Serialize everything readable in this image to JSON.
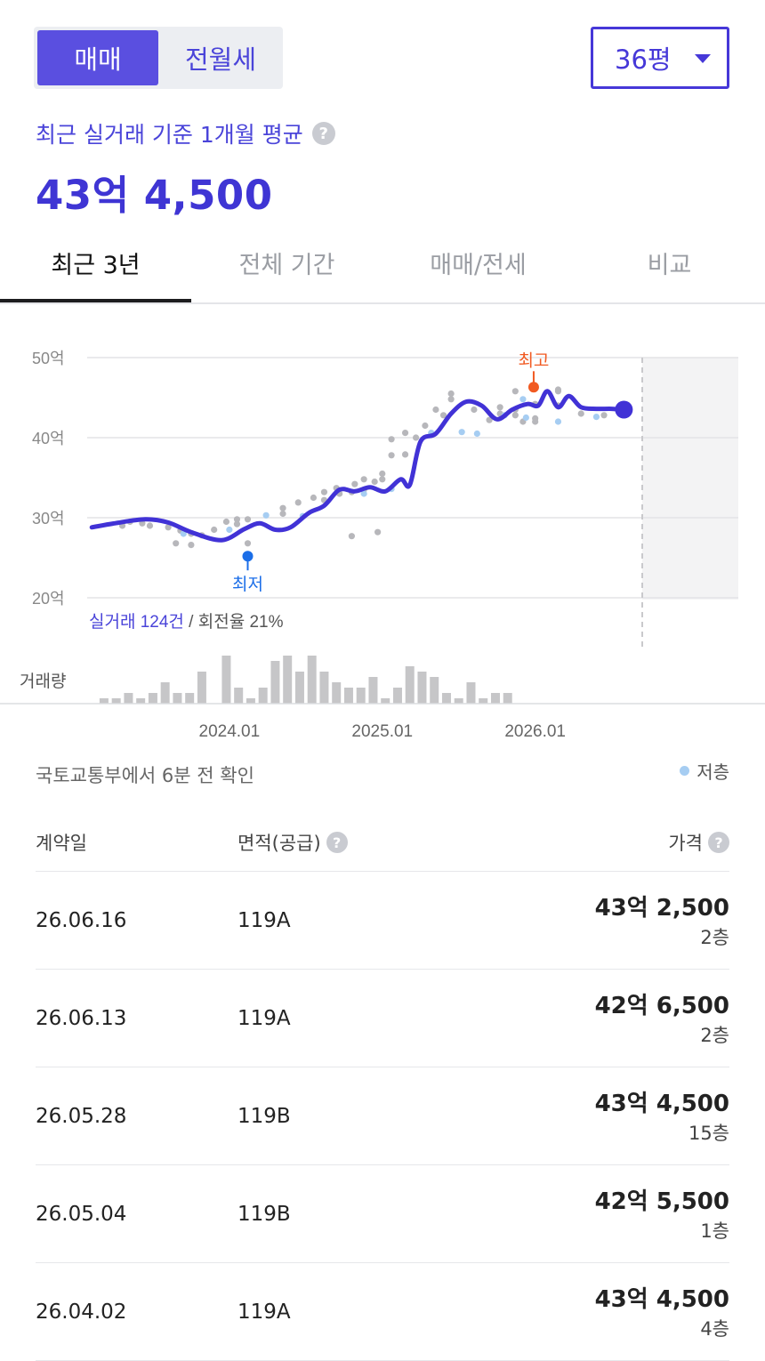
{
  "deal_toggle": {
    "options": [
      "매매",
      "전월세"
    ],
    "selected": "매매"
  },
  "area_select": {
    "value": "36평"
  },
  "summary": {
    "label": "최근 실거래 기준 1개월 평균",
    "help": "?",
    "price": "43억 4,500"
  },
  "tabs": [
    "최근 3년",
    "전체 기간",
    "매매/전세",
    "비교"
  ],
  "chart": {
    "annotation_high": "최고",
    "annotation_low": "최저",
    "stats_count": "실거래 124건",
    "stats_sep": " / ",
    "stats_turnover": "회전율 21%",
    "volume_label": "거래량",
    "colors": {
      "line": "#4132d6",
      "high": "#f15a22",
      "low": "#1b6ee8",
      "low_floor_dot": "#a6cdf2",
      "dot": "#b7b7bb",
      "bar": "#c6c6c8"
    }
  },
  "chart_data": {
    "type": "line",
    "ylabel": "",
    "yticks": [
      "20억",
      "30억",
      "40억",
      "50억"
    ],
    "ylim": [
      20,
      50
    ],
    "xticks": [
      "2024.01",
      "2025.01",
      "2026.01"
    ],
    "xlim": [
      2023.07,
      2026.7
    ],
    "series": [
      {
        "x": [
          2023.1,
          2023.25,
          2023.45,
          2023.6,
          2023.75,
          2023.95,
          2024.1,
          2024.2,
          2024.3,
          2024.4,
          2024.52,
          2024.62,
          2024.72,
          2024.82,
          2024.92,
          2025.02,
          2025.12,
          2025.18,
          2025.25,
          2025.35,
          2025.45,
          2025.55,
          2025.65,
          2025.75,
          2025.85,
          2025.95,
          2026.02,
          2026.08,
          2026.15,
          2026.22,
          2026.3,
          2026.4,
          2026.5,
          2026.58
        ],
        "values": [
          28.8,
          29.3,
          29.8,
          29.4,
          28.2,
          27.2,
          28.6,
          29.3,
          28.5,
          28.8,
          30.6,
          31.5,
          33.5,
          33.3,
          33.8,
          33.3,
          34.8,
          34.1,
          39.5,
          40.5,
          43.0,
          44.5,
          44.0,
          42.3,
          43.5,
          44.2,
          44.0,
          45.8,
          43.8,
          45.2,
          43.8,
          43.6,
          43.6,
          43.5
        ]
      }
    ],
    "scatter_all": [
      {
        "x": 2023.3,
        "y": 29.0
      },
      {
        "x": 2023.35,
        "y": 29.5
      },
      {
        "x": 2023.43,
        "y": 29.3
      },
      {
        "x": 2023.48,
        "y": 29.0
      },
      {
        "x": 2023.6,
        "y": 28.8
      },
      {
        "x": 2023.68,
        "y": 28.4
      },
      {
        "x": 2023.65,
        "y": 26.8
      },
      {
        "x": 2023.75,
        "y": 28.0
      },
      {
        "x": 2023.75,
        "y": 26.6
      },
      {
        "x": 2023.82,
        "y": 27.8
      },
      {
        "x": 2023.9,
        "y": 28.5
      },
      {
        "x": 2023.98,
        "y": 29.5
      },
      {
        "x": 2024.05,
        "y": 29.8
      },
      {
        "x": 2024.05,
        "y": 29.2
      },
      {
        "x": 2024.12,
        "y": 29.8
      },
      {
        "x": 2024.12,
        "y": 26.8
      },
      {
        "x": 2024.35,
        "y": 31.2
      },
      {
        "x": 2024.35,
        "y": 30.5
      },
      {
        "x": 2024.45,
        "y": 31.9
      },
      {
        "x": 2024.55,
        "y": 32.5
      },
      {
        "x": 2024.62,
        "y": 32.2
      },
      {
        "x": 2024.62,
        "y": 33.2
      },
      {
        "x": 2024.7,
        "y": 33.7
      },
      {
        "x": 2024.72,
        "y": 33.0
      },
      {
        "x": 2024.8,
        "y": 33.2
      },
      {
        "x": 2024.82,
        "y": 34.2
      },
      {
        "x": 2024.8,
        "y": 27.7
      },
      {
        "x": 2024.88,
        "y": 34.8
      },
      {
        "x": 2024.88,
        "y": 33.5
      },
      {
        "x": 2024.95,
        "y": 34.5
      },
      {
        "x": 2024.97,
        "y": 28.2
      },
      {
        "x": 2025.0,
        "y": 34.8
      },
      {
        "x": 2025.0,
        "y": 35.5
      },
      {
        "x": 2025.06,
        "y": 39.8
      },
      {
        "x": 2025.06,
        "y": 37.8
      },
      {
        "x": 2025.15,
        "y": 37.9
      },
      {
        "x": 2025.15,
        "y": 40.6
      },
      {
        "x": 2025.22,
        "y": 40.0
      },
      {
        "x": 2025.28,
        "y": 41.5
      },
      {
        "x": 2025.35,
        "y": 43.5
      },
      {
        "x": 2025.4,
        "y": 42.8
      },
      {
        "x": 2025.45,
        "y": 45.5
      },
      {
        "x": 2025.45,
        "y": 44.8
      },
      {
        "x": 2025.6,
        "y": 43.5
      },
      {
        "x": 2025.7,
        "y": 42.2
      },
      {
        "x": 2025.77,
        "y": 43.0
      },
      {
        "x": 2025.77,
        "y": 43.8
      },
      {
        "x": 2025.87,
        "y": 42.8
      },
      {
        "x": 2025.87,
        "y": 43.5
      },
      {
        "x": 2025.87,
        "y": 45.8
      },
      {
        "x": 2025.92,
        "y": 42.0
      },
      {
        "x": 2026.0,
        "y": 44.2
      },
      {
        "x": 2026.0,
        "y": 42.4
      },
      {
        "x": 2026.0,
        "y": 42.0
      },
      {
        "x": 2026.15,
        "y": 46.0
      },
      {
        "x": 2026.15,
        "y": 45.8
      },
      {
        "x": 2026.15,
        "y": 44.0
      },
      {
        "x": 2026.3,
        "y": 43.0
      },
      {
        "x": 2026.45,
        "y": 42.8
      }
    ],
    "scatter_low_floor": [
      {
        "x": 2023.7,
        "y": 28.0
      },
      {
        "x": 2024.0,
        "y": 28.5
      },
      {
        "x": 2024.24,
        "y": 30.3
      },
      {
        "x": 2024.48,
        "y": 30.2
      },
      {
        "x": 2024.88,
        "y": 33.0
      },
      {
        "x": 2025.06,
        "y": 33.6
      },
      {
        "x": 2025.32,
        "y": 40.6
      },
      {
        "x": 2025.52,
        "y": 40.7
      },
      {
        "x": 2025.62,
        "y": 40.5
      },
      {
        "x": 2025.8,
        "y": 42.8
      },
      {
        "x": 2025.92,
        "y": 44.8
      },
      {
        "x": 2025.94,
        "y": 42.5
      },
      {
        "x": 2026.15,
        "y": 42.0
      },
      {
        "x": 2026.4,
        "y": 42.6
      }
    ],
    "high": {
      "x": 2025.99,
      "y": 46.3
    },
    "low": {
      "x": 2024.12,
      "y": 25.2
    },
    "current": {
      "x": 2026.58,
      "y": 43.5
    },
    "volume": [
      {
        "x": 2023.18,
        "v": 1
      },
      {
        "x": 2023.26,
        "v": 1
      },
      {
        "x": 2023.34,
        "v": 2
      },
      {
        "x": 2023.42,
        "v": 1
      },
      {
        "x": 2023.5,
        "v": 2
      },
      {
        "x": 2023.58,
        "v": 4
      },
      {
        "x": 2023.66,
        "v": 2
      },
      {
        "x": 2023.74,
        "v": 2
      },
      {
        "x": 2023.82,
        "v": 6
      },
      {
        "x": 2023.98,
        "v": 9
      },
      {
        "x": 2024.06,
        "v": 3
      },
      {
        "x": 2024.14,
        "v": 1
      },
      {
        "x": 2024.22,
        "v": 3
      },
      {
        "x": 2024.3,
        "v": 8
      },
      {
        "x": 2024.38,
        "v": 9
      },
      {
        "x": 2024.46,
        "v": 6
      },
      {
        "x": 2024.54,
        "v": 9
      },
      {
        "x": 2024.62,
        "v": 6
      },
      {
        "x": 2024.7,
        "v": 4
      },
      {
        "x": 2024.78,
        "v": 3
      },
      {
        "x": 2024.86,
        "v": 3
      },
      {
        "x": 2024.94,
        "v": 5
      },
      {
        "x": 2025.02,
        "v": 1
      },
      {
        "x": 2025.1,
        "v": 3
      },
      {
        "x": 2025.18,
        "v": 7
      },
      {
        "x": 2025.26,
        "v": 6
      },
      {
        "x": 2025.34,
        "v": 5
      },
      {
        "x": 2025.42,
        "v": 2
      },
      {
        "x": 2025.5,
        "v": 1
      },
      {
        "x": 2025.58,
        "v": 4
      },
      {
        "x": 2025.66,
        "v": 1
      },
      {
        "x": 2025.74,
        "v": 2
      },
      {
        "x": 2025.82,
        "v": 2
      }
    ]
  },
  "sync_note": "국토교통부에서 6분 전 확인",
  "legend": {
    "low_floor": "저층"
  },
  "table": {
    "headers": {
      "date": "계약일",
      "area": "면적(공급)",
      "price": "가격"
    },
    "rows": [
      {
        "date": "26.06.16",
        "area": "119A",
        "price": "43억 2,500",
        "floor": "2층"
      },
      {
        "date": "26.06.13",
        "area": "119A",
        "price": "42억 6,500",
        "floor": "2층"
      },
      {
        "date": "26.05.28",
        "area": "119B",
        "price": "43억 4,500",
        "floor": "15층"
      },
      {
        "date": "26.05.04",
        "area": "119B",
        "price": "42억 5,500",
        "floor": "1층"
      },
      {
        "date": "26.04.02",
        "area": "119A",
        "price": "43억 4,500",
        "floor": "4층"
      }
    ]
  }
}
